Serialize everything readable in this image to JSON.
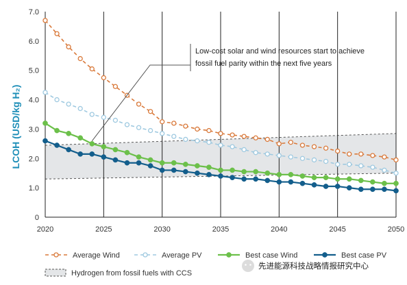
{
  "chart_data": {
    "type": "line",
    "xlabel": "",
    "ylabel": "LCOH (USD/kg H₂)",
    "xlim": [
      2020,
      2050
    ],
    "ylim": [
      0,
      7
    ],
    "xticks": [
      "2020",
      "2025",
      "2030",
      "2035",
      "2040",
      "2045",
      "2050"
    ],
    "yticks": [
      "0",
      "1.0",
      "2.0",
      "3.0",
      "4.0",
      "5.0",
      "6.0",
      "7.0"
    ],
    "grid": "vertical lines at 5-year ticks; bottom axis line",
    "x": [
      2020,
      2021,
      2022,
      2023,
      2024,
      2025,
      2026,
      2027,
      2028,
      2029,
      2030,
      2031,
      2032,
      2033,
      2034,
      2035,
      2036,
      2037,
      2038,
      2039,
      2040,
      2041,
      2042,
      2043,
      2044,
      2045,
      2046,
      2047,
      2048,
      2049,
      2050
    ],
    "series": [
      {
        "name": "Average Wind",
        "style": "dashed-hollow",
        "color": "#d9793a",
        "values": [
          6.7,
          6.25,
          5.8,
          5.4,
          5.05,
          4.75,
          4.45,
          4.15,
          3.85,
          3.6,
          3.25,
          3.2,
          3.1,
          3.0,
          2.95,
          2.85,
          2.8,
          2.75,
          2.7,
          2.65,
          2.5,
          2.55,
          2.45,
          2.4,
          2.35,
          2.25,
          2.15,
          2.15,
          2.1,
          2.05,
          1.95
        ]
      },
      {
        "name": "Average PV",
        "style": "dashed-hollow",
        "color": "#9ec9e0",
        "values": [
          4.25,
          4.0,
          3.85,
          3.7,
          3.5,
          3.4,
          3.3,
          3.15,
          3.05,
          2.95,
          2.85,
          2.75,
          2.65,
          2.6,
          2.55,
          2.45,
          2.4,
          2.3,
          2.2,
          2.15,
          2.1,
          2.05,
          2.0,
          1.95,
          1.9,
          1.8,
          1.8,
          1.75,
          1.7,
          1.6,
          1.5
        ]
      },
      {
        "name": "Best case Wind",
        "style": "solid-filled",
        "color": "#6cc04a",
        "values": [
          3.2,
          2.95,
          2.85,
          2.7,
          2.5,
          2.4,
          2.3,
          2.2,
          2.05,
          1.95,
          1.85,
          1.85,
          1.8,
          1.75,
          1.7,
          1.6,
          1.6,
          1.55,
          1.55,
          1.5,
          1.45,
          1.45,
          1.4,
          1.35,
          1.35,
          1.3,
          1.3,
          1.25,
          1.2,
          1.15,
          1.15
        ]
      },
      {
        "name": "Best case PV",
        "style": "solid-filled",
        "color": "#135e8c",
        "values": [
          2.6,
          2.45,
          2.3,
          2.15,
          2.15,
          2.05,
          1.95,
          1.85,
          1.85,
          1.75,
          1.6,
          1.6,
          1.55,
          1.5,
          1.45,
          1.4,
          1.35,
          1.3,
          1.3,
          1.25,
          1.2,
          1.2,
          1.15,
          1.1,
          1.05,
          1.05,
          1.0,
          0.95,
          0.95,
          0.95,
          0.9
        ]
      }
    ],
    "band": {
      "name": "Hydrogen from fossil fuels with CCS",
      "x": [
        2020,
        2050
      ],
      "lower": [
        1.3,
        1.5
      ],
      "upper": [
        2.45,
        2.85
      ],
      "fill": "#e4e6e8"
    },
    "annotation": {
      "lines": [
        "Low-cost solar and wind resources start to achieve",
        "fossil fuel parity within the next five years"
      ],
      "points_to": {
        "x": 2024,
        "y": 2.5
      }
    },
    "legend_position": "bottom",
    "watermark": "先进能源科技战略情报研究中心"
  },
  "colors": {
    "wind": "#d9793a",
    "pv": "#9ec9e0",
    "best_wind": "#6cc04a",
    "best_pv": "#135e8c",
    "band": "#e4e6e8",
    "ylabel": "#1f8fb8"
  }
}
